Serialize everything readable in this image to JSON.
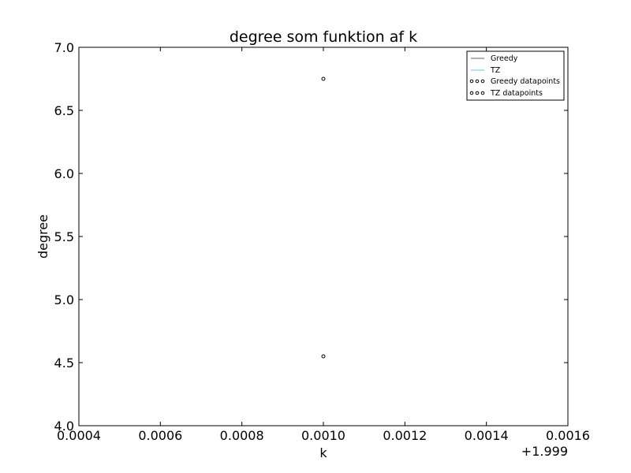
{
  "chart_data": {
    "type": "scatter",
    "title": "degree som funktion af k",
    "xlabel": "k",
    "ylabel": "degree",
    "x_offset_label": "+1.999",
    "xlim": [
      0.0004,
      0.0016
    ],
    "ylim": [
      4.0,
      7.0
    ],
    "x_ticks": [
      "0.0004",
      "0.0006",
      "0.0008",
      "0.0010",
      "0.0012",
      "0.0014",
      "0.0016"
    ],
    "y_ticks": [
      "4.0",
      "4.5",
      "5.0",
      "5.5",
      "6.0",
      "6.5",
      "7.0"
    ],
    "grid": false,
    "legend_position": "upper right",
    "series": [
      {
        "name": "Greedy",
        "kind": "line",
        "color": "#808080",
        "x": [
          0.001
        ],
        "y": [
          6.75
        ]
      },
      {
        "name": "TZ",
        "kind": "line",
        "color": "#87cefa",
        "x": [
          0.001
        ],
        "y": [
          4.55
        ]
      },
      {
        "name": "Greedy datapoints",
        "kind": "scatter",
        "color": "#000000",
        "x": [
          0.001
        ],
        "y": [
          6.75
        ]
      },
      {
        "name": "TZ datapoints",
        "kind": "scatter",
        "color": "#000000",
        "x": [
          0.001
        ],
        "y": [
          4.55
        ]
      }
    ]
  }
}
